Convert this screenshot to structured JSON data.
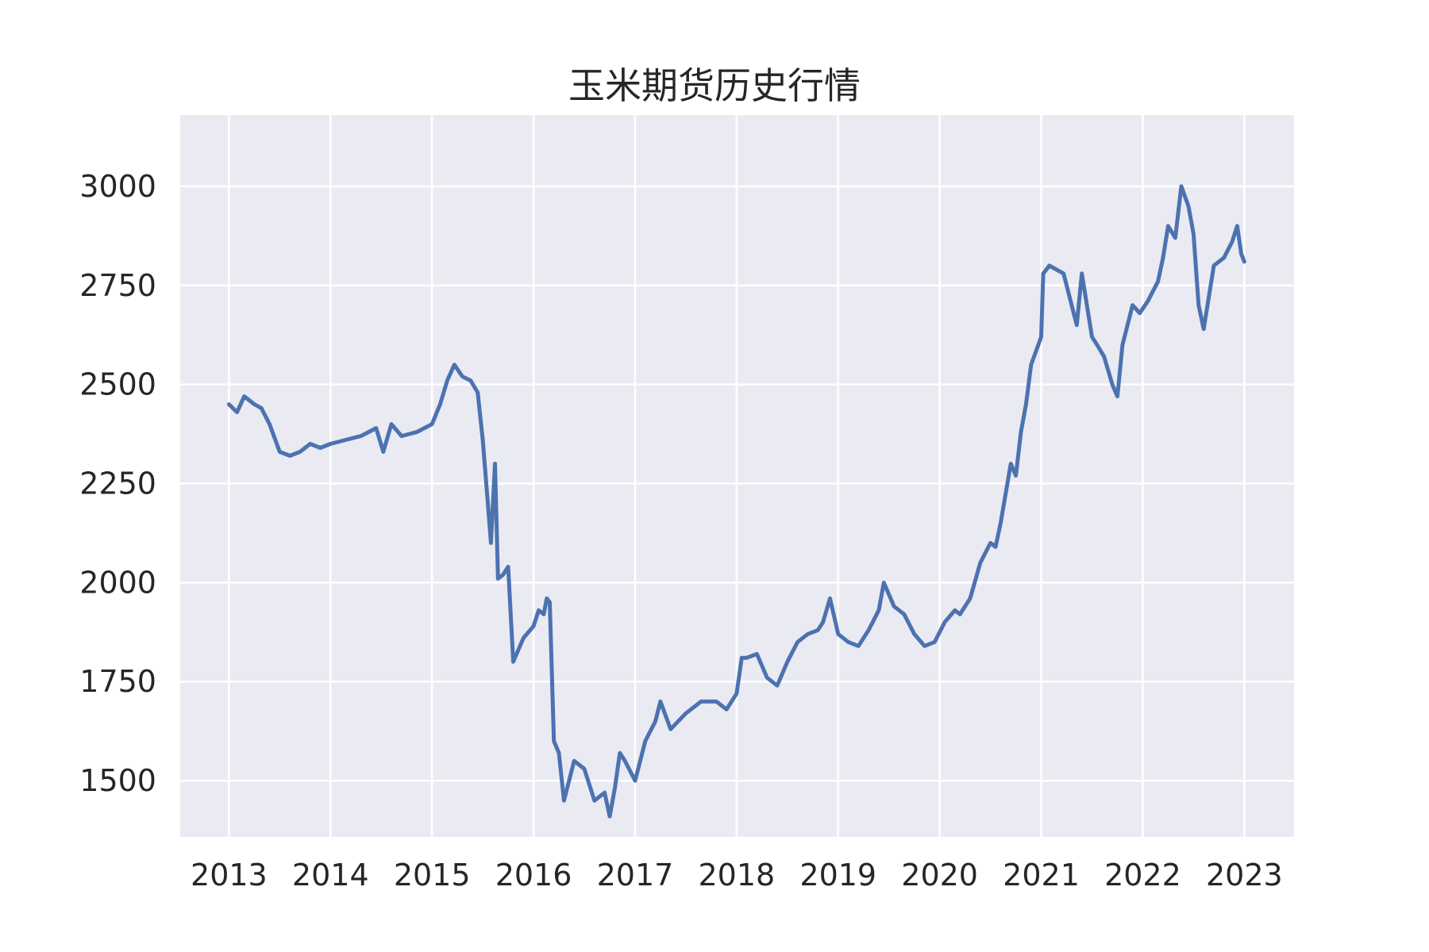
{
  "chart_data": {
    "type": "line",
    "title": "玉米期货历史行情",
    "xlabel": "",
    "ylabel": "",
    "xlim": [
      2012.52,
      2023.49
    ],
    "ylim": [
      1358,
      3180
    ],
    "x_ticks": [
      "2013",
      "2014",
      "2015",
      "2016",
      "2017",
      "2018",
      "2019",
      "2020",
      "2021",
      "2022",
      "2023"
    ],
    "y_ticks": [
      "1500",
      "1750",
      "2000",
      "2250",
      "2500",
      "2750",
      "3000"
    ],
    "grid": true,
    "legend": "none",
    "colors": {
      "line": "#4c72b0",
      "plot_bg": "#eaeaf2",
      "grid": "#ffffff"
    },
    "series": [
      {
        "x": [
          2013.0,
          2013.08,
          2013.15,
          2013.25,
          2013.32,
          2013.4,
          2013.5,
          2013.6,
          2013.7,
          2013.8,
          2013.9,
          2014.0,
          2014.15,
          2014.3,
          2014.45,
          2014.52,
          2014.6,
          2014.7,
          2014.85,
          2015.0,
          2015.08,
          2015.15,
          2015.22,
          2015.3,
          2015.38,
          2015.45,
          2015.5,
          2015.55,
          2015.58,
          2015.62,
          2015.65,
          2015.7,
          2015.75,
          2015.8,
          2015.9,
          2016.0,
          2016.05,
          2016.1,
          2016.13,
          2016.16,
          2016.2,
          2016.25,
          2016.3,
          2016.4,
          2016.5,
          2016.6,
          2016.7,
          2016.75,
          2016.8,
          2016.85,
          2016.9,
          2017.0,
          2017.1,
          2017.2,
          2017.25,
          2017.35,
          2017.5,
          2017.65,
          2017.8,
          2017.9,
          2018.0,
          2018.05,
          2018.1,
          2018.2,
          2018.3,
          2018.4,
          2018.5,
          2018.6,
          2018.7,
          2018.8,
          2018.85,
          2018.92,
          2019.0,
          2019.1,
          2019.2,
          2019.3,
          2019.4,
          2019.45,
          2019.55,
          2019.65,
          2019.75,
          2019.85,
          2019.95,
          2020.05,
          2020.15,
          2020.2,
          2020.3,
          2020.4,
          2020.5,
          2020.55,
          2020.6,
          2020.7,
          2020.75,
          2020.8,
          2020.85,
          2020.9,
          2021.0,
          2021.02,
          2021.08,
          2021.15,
          2021.22,
          2021.3,
          2021.35,
          2021.4,
          2021.5,
          2021.55,
          2021.62,
          2021.7,
          2021.75,
          2021.8,
          2021.9,
          2021.97,
          2022.05,
          2022.15,
          2022.2,
          2022.25,
          2022.32,
          2022.38,
          2022.45,
          2022.5,
          2022.55,
          2022.6,
          2022.7,
          2022.8,
          2022.88,
          2022.93,
          2022.97,
          2023.0
        ],
        "values": [
          2450,
          2430,
          2470,
          2450,
          2440,
          2400,
          2330,
          2320,
          2330,
          2350,
          2340,
          2350,
          2360,
          2370,
          2390,
          2330,
          2400,
          2370,
          2380,
          2400,
          2450,
          2510,
          2550,
          2520,
          2510,
          2480,
          2360,
          2200,
          2100,
          2300,
          2010,
          2020,
          2040,
          1800,
          1860,
          1890,
          1930,
          1920,
          1960,
          1950,
          1600,
          1570,
          1450,
          1550,
          1530,
          1450,
          1470,
          1410,
          1480,
          1570,
          1550,
          1500,
          1600,
          1650,
          1700,
          1630,
          1670,
          1700,
          1700,
          1680,
          1720,
          1810,
          1810,
          1820,
          1760,
          1740,
          1800,
          1850,
          1870,
          1880,
          1900,
          1960,
          1870,
          1850,
          1840,
          1880,
          1930,
          2000,
          1940,
          1920,
          1870,
          1840,
          1850,
          1900,
          1930,
          1920,
          1960,
          2050,
          2100,
          2090,
          2150,
          2300,
          2270,
          2380,
          2450,
          2550,
          2620,
          2780,
          2800,
          2790,
          2780,
          2700,
          2650,
          2780,
          2620,
          2600,
          2570,
          2500,
          2470,
          2600,
          2700,
          2680,
          2710,
          2760,
          2820,
          2900,
          2870,
          3000,
          2950,
          2880,
          2700,
          2640,
          2800,
          2820,
          2860,
          2900,
          2830,
          2810
        ]
      }
    ]
  }
}
